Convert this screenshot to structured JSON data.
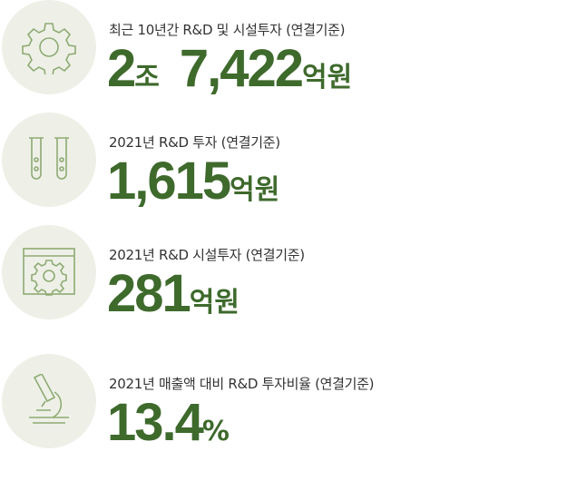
{
  "items": [
    {
      "label": "최근 10년간 R&D 및 시설투자 (연결기준)",
      "value": [
        {
          "number": "2",
          "unit": "조"
        },
        {
          "number": "7,422",
          "unit": "억원"
        }
      ]
    },
    {
      "label": "2021년 R&D 투자 (연결기준)",
      "value": [
        {
          "number": "1,615",
          "unit": "억원"
        }
      ]
    },
    {
      "label": "2021년 R&D 시설투자 (연결기준)",
      "value": [
        {
          "number": "281",
          "unit": "억원"
        }
      ]
    },
    {
      "label": "2021년 매출액 대비 R&D 투자비율 (연결기준)",
      "value": [
        {
          "number": "13.4",
          "unit": "%"
        }
      ]
    }
  ]
}
